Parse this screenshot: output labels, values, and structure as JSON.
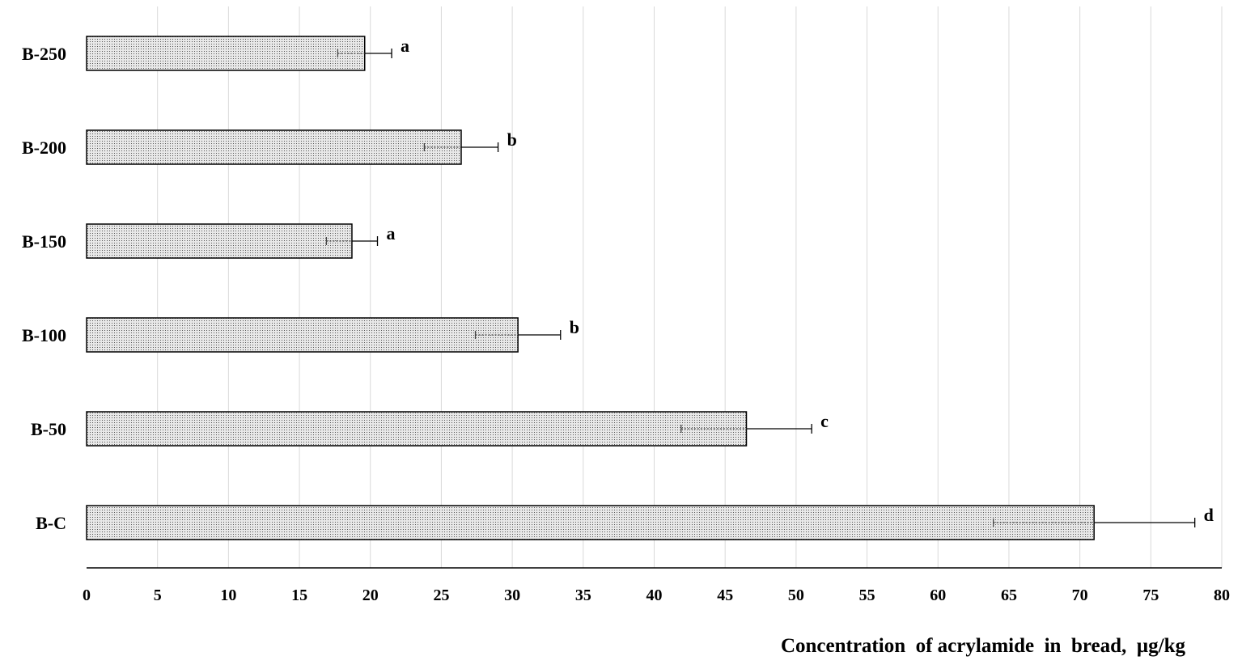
{
  "chart_data": {
    "type": "bar",
    "orientation": "horizontal",
    "categories": [
      "B-250",
      "B-200",
      "B-150",
      "B-100",
      "B-50",
      "B-C"
    ],
    "values": [
      19.6,
      26.4,
      18.7,
      30.4,
      46.5,
      71.0
    ],
    "error": [
      1.9,
      2.6,
      1.8,
      3.0,
      4.6,
      7.1
    ],
    "significance": [
      "a",
      "b",
      "a",
      "b",
      "c",
      "d"
    ],
    "xlabel": "Concentration  of acrylamide  in  bread,  µg/kg",
    "ylabel": "",
    "xlim": [
      0,
      80
    ],
    "xticks": [
      0,
      5,
      10,
      15,
      20,
      25,
      30,
      35,
      40,
      45,
      50,
      55,
      60,
      65,
      70,
      75,
      80
    ],
    "grid": "vertical",
    "legend": "none",
    "colors": {
      "bar_fill": "#d0d0d0",
      "bar_edge": "#000000",
      "grid": "#d9d9d9"
    }
  }
}
